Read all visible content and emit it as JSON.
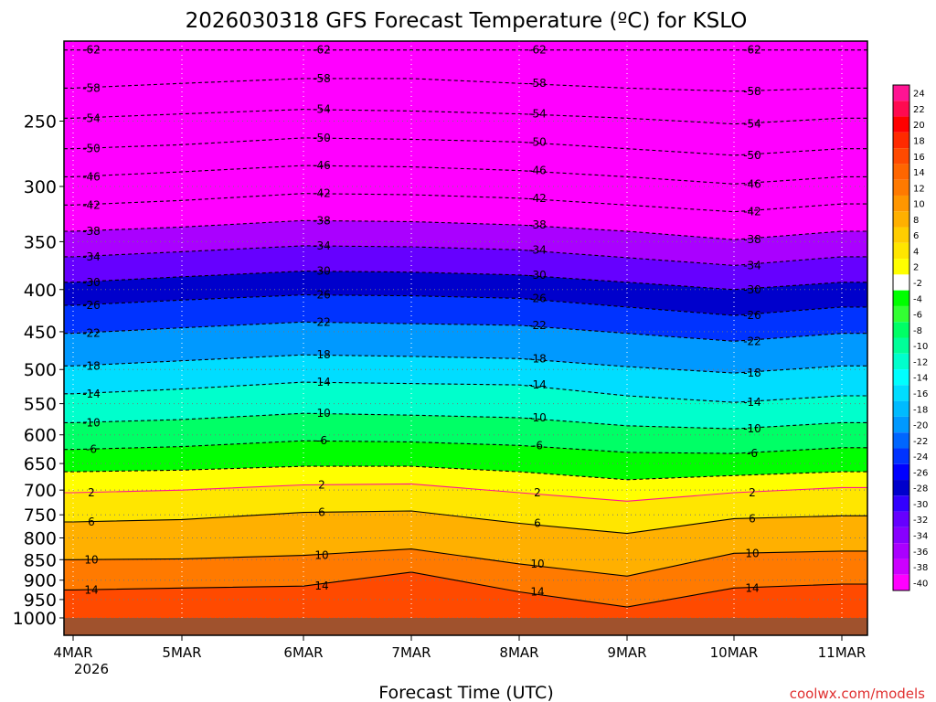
{
  "chart_data": {
    "type": "heatmap",
    "title": "2026030318 GFS Forecast Temperature (ºC) for KSLO",
    "xlabel": "Forecast Time (UTC)",
    "ylabel": "",
    "x_ticks": [
      {
        "label": "4MAR",
        "sub": "2026"
      },
      {
        "label": "5MAR",
        "sub": ""
      },
      {
        "label": "6MAR",
        "sub": ""
      },
      {
        "label": "7MAR",
        "sub": ""
      },
      {
        "label": "8MAR",
        "sub": ""
      },
      {
        "label": "9MAR",
        "sub": ""
      },
      {
        "label": "10MAR",
        "sub": ""
      },
      {
        "label": "11MAR",
        "sub": ""
      }
    ],
    "y_ticks": [
      250,
      300,
      350,
      400,
      450,
      500,
      550,
      600,
      650,
      700,
      750,
      800,
      850,
      900,
      950,
      1000
    ],
    "y_log": true,
    "ylim_hPa": [
      200,
      1000
    ],
    "grid": true,
    "colorbar_levels": [
      24,
      22,
      20,
      18,
      16,
      14,
      12,
      10,
      8,
      6,
      4,
      2,
      -2,
      -4,
      -6,
      -8,
      -10,
      -12,
      -14,
      -16,
      -18,
      -20,
      -22,
      -24,
      -26,
      -28,
      -30,
      -32,
      -34,
      -36,
      -38,
      -40
    ],
    "colorbar_colors": [
      "#ff1493",
      "#ff0a50",
      "#ff0000",
      "#ff2a00",
      "#ff4a00",
      "#ff6600",
      "#ff7a00",
      "#ff9600",
      "#ffb000",
      "#ffcd00",
      "#ffe600",
      "#ffff00",
      "#ffffff",
      "#00ff00",
      "#33ff33",
      "#00ff66",
      "#00ff99",
      "#00ffcc",
      "#00ffff",
      "#00ddff",
      "#00bbff",
      "#0099ff",
      "#0066ff",
      "#0033ff",
      "#0000ff",
      "#0000cc",
      "#3300ff",
      "#6600ff",
      "#8800ff",
      "#aa00ff",
      "#cc00ff",
      "#ff00ff"
    ],
    "isotherms": [
      {
        "value": -62,
        "levels_hPa": [
          205,
          205,
          205,
          205,
          205,
          205,
          205,
          205
        ]
      },
      {
        "value": -58,
        "levels_hPa": [
          228,
          225,
          222,
          222,
          225,
          228,
          230,
          228
        ]
      },
      {
        "value": -54,
        "levels_hPa": [
          248,
          245,
          242,
          243,
          245,
          248,
          252,
          248
        ]
      },
      {
        "value": -50,
        "levels_hPa": [
          270,
          267,
          262,
          263,
          265,
          270,
          275,
          270
        ]
      },
      {
        "value": -46,
        "levels_hPa": [
          292,
          288,
          283,
          284,
          287,
          292,
          298,
          292
        ]
      },
      {
        "value": -42,
        "levels_hPa": [
          316,
          312,
          306,
          307,
          310,
          316,
          322,
          315
        ]
      },
      {
        "value": -38,
        "levels_hPa": [
          340,
          336,
          330,
          331,
          334,
          340,
          348,
          340
        ]
      },
      {
        "value": -34,
        "levels_hPa": [
          365,
          360,
          354,
          355,
          358,
          366,
          374,
          365
        ]
      },
      {
        "value": -30,
        "levels_hPa": [
          392,
          386,
          380,
          381,
          384,
          392,
          400,
          392
        ]
      },
      {
        "value": -26,
        "levels_hPa": [
          418,
          412,
          406,
          407,
          410,
          420,
          430,
          420
        ]
      },
      {
        "value": -22,
        "levels_hPa": [
          452,
          445,
          438,
          440,
          442,
          452,
          462,
          452
        ]
      },
      {
        "value": -18,
        "levels_hPa": [
          495,
          488,
          480,
          482,
          485,
          496,
          505,
          495
        ]
      },
      {
        "value": -14,
        "levels_hPa": [
          535,
          528,
          518,
          520,
          522,
          538,
          548,
          538
        ]
      },
      {
        "value": -10,
        "levels_hPa": [
          580,
          575,
          565,
          568,
          572,
          585,
          590,
          580
        ]
      },
      {
        "value": -6,
        "levels_hPa": [
          625,
          620,
          610,
          612,
          618,
          630,
          632,
          622
        ]
      },
      {
        "value": -2,
        "levels_hPa": [
          665,
          662,
          655,
          655,
          665,
          680,
          672,
          665
        ]
      },
      {
        "value": 2,
        "levels_hPa": [
          705,
          700,
          690,
          688,
          705,
          722,
          705,
          695
        ]
      },
      {
        "value": 6,
        "levels_hPa": [
          765,
          760,
          745,
          742,
          768,
          790,
          758,
          752
        ]
      },
      {
        "value": 10,
        "levels_hPa": [
          850,
          848,
          840,
          825,
          860,
          890,
          835,
          830
        ]
      },
      {
        "value": 14,
        "levels_hPa": [
          925,
          920,
          915,
          880,
          930,
          970,
          920,
          910
        ]
      }
    ],
    "isotherm_labels": [
      "-62",
      "-58",
      "-54",
      "-50",
      "-46",
      "-42",
      "-38",
      "-34",
      "-30",
      "-26",
      "-22",
      "-18",
      "-14",
      "-10",
      "-6",
      "2",
      "6",
      "10",
      "14"
    ],
    "credit": "coolwx.com/models"
  }
}
